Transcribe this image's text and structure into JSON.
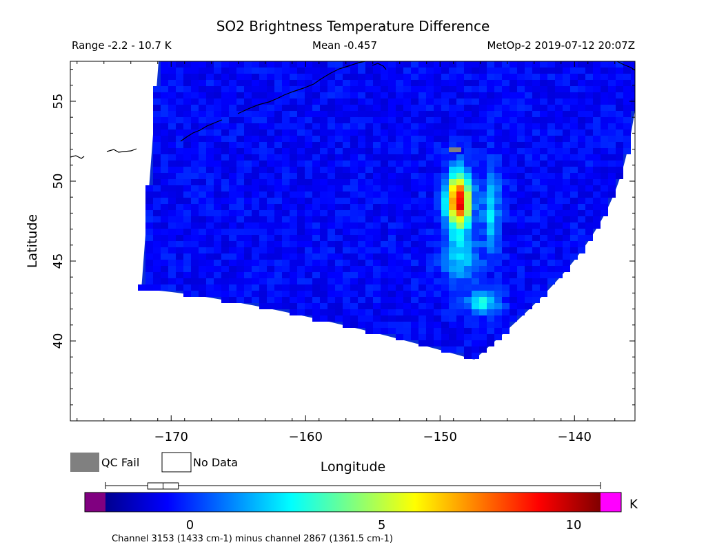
{
  "header": {
    "title": "SO2 Brightness Temperature Difference",
    "range_text": "Range -2.2 - 10.7 K",
    "mean_text": "Mean -0.457",
    "satellite_text": "MetOp-2 2019-07-12 20:07Z"
  },
  "legend": {
    "qc_fail_label": "QC Fail",
    "no_data_label": "No Data",
    "qc_fail_color": "#808080",
    "no_data_color": "#ffffff"
  },
  "colorbar": {
    "unit": "K",
    "ticks": [
      "0",
      "5",
      "10"
    ],
    "tick_values": [
      0,
      5,
      10
    ],
    "min": -2.2,
    "max": 10.7,
    "under_color": "#800080",
    "over_color": "#ff00ff",
    "boxplot": {
      "min": -2.2,
      "q1": -1.1,
      "median": -0.7,
      "q3": -0.3,
      "max": 10.7
    },
    "caption": "Channel 3153 (1433 cm-1) minus channel 2867 (1361.5 cm-1)"
  },
  "chart_data": {
    "type": "heatmap",
    "title": "SO2 Brightness Temperature Difference",
    "xlabel": "Longitude",
    "ylabel": "Latitude",
    "xlim": [
      -177.5,
      -135.5
    ],
    "ylim": [
      35,
      57.5
    ],
    "x_ticks": [
      -170,
      -160,
      -150,
      -140
    ],
    "x_tick_labels": [
      "−170",
      "−160",
      "−150",
      "−140"
    ],
    "y_ticks": [
      40,
      45,
      50,
      55
    ],
    "y_tick_labels": [
      "40",
      "45",
      "50",
      "55"
    ],
    "value_range": [
      -2.2,
      10.7
    ],
    "mean": -0.457,
    "units": "K",
    "plume": {
      "peak_lon": -148.6,
      "peak_lat": 48.8,
      "peak_value": 10.2
    }
  }
}
